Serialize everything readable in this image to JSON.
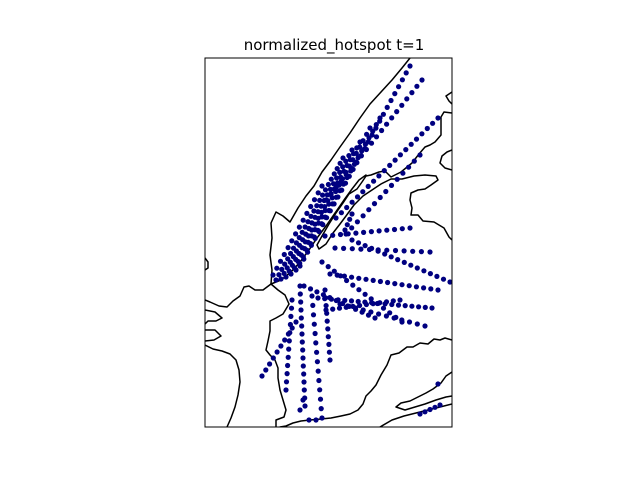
{
  "title": "normalized_hotspot t=1",
  "map": {
    "point_color": "#000080",
    "coast_color": "#000000",
    "background_color": "#ffffff"
  },
  "icons": {
    "hotspot_marker": "filled-circle"
  }
}
